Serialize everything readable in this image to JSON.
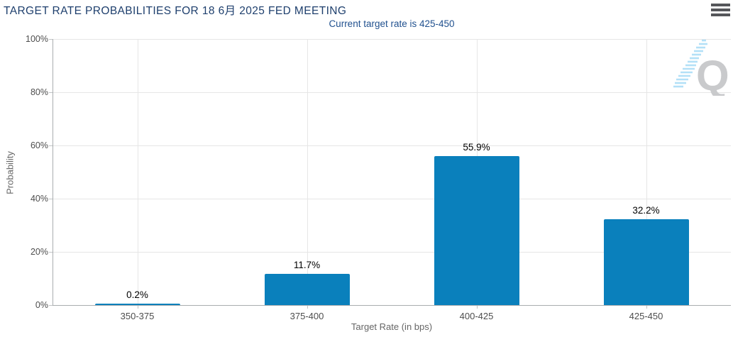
{
  "header": {
    "menu_icon": "hamburger-icon"
  },
  "chart_data": {
    "type": "bar",
    "title": "TARGET RATE PROBABILITIES FOR 18 6月 2025 FED MEETING",
    "subtitle": "Current target rate is 425-450",
    "categories": [
      "350-375",
      "375-400",
      "400-425",
      "425-450"
    ],
    "values": [
      0.2,
      11.7,
      55.9,
      32.2
    ],
    "data_labels": [
      "0.2%",
      "11.7%",
      "55.9%",
      "32.2%"
    ],
    "xlabel": "Target Rate (in bps)",
    "ylabel": "Probability",
    "ylim": [
      0,
      100
    ],
    "yticks": [
      "0%",
      "20%",
      "40%",
      "60%",
      "80%",
      "100%"
    ],
    "grid": true,
    "legend": "none",
    "watermark": "Q"
  },
  "colors": {
    "bar": "#0a80bc",
    "title": "#1e3f6d",
    "subtitle": "#21518f",
    "gridline": "#e6e6e6",
    "axis": "#a9adaf",
    "tick_label": "#4d4d4d",
    "axis_title": "#666666",
    "data_label": "#000000",
    "watermark_q": "#c9cacc",
    "watermark_stripes": "#b3e0f7"
  }
}
